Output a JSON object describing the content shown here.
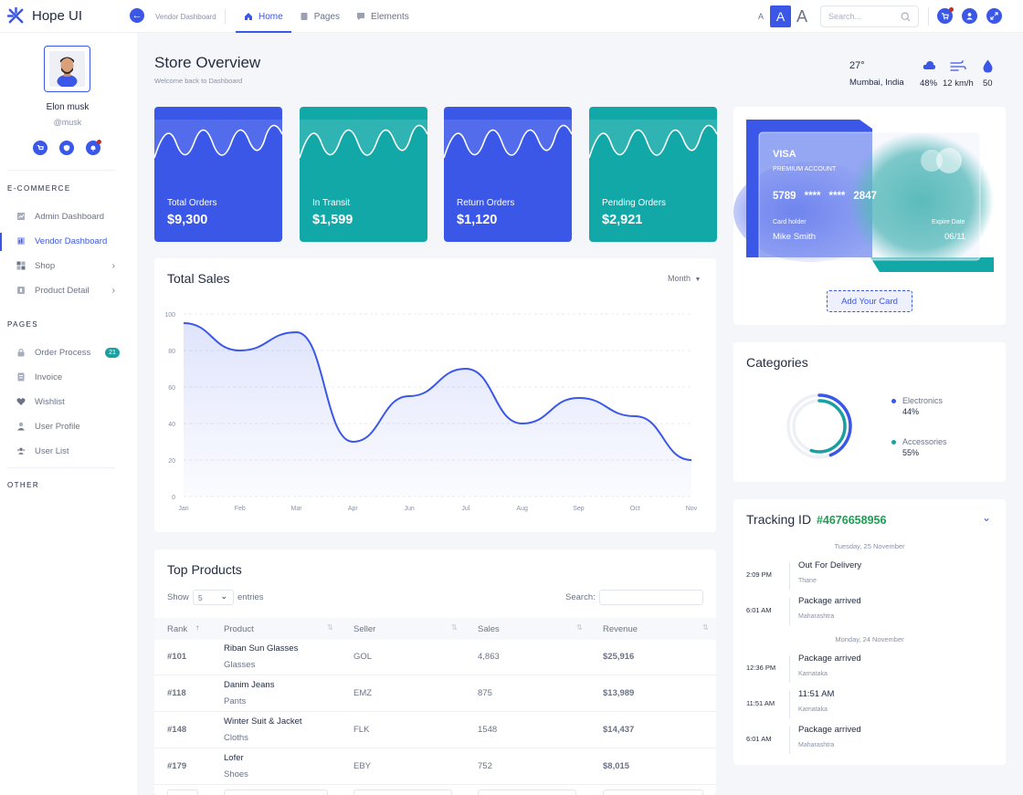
{
  "brand": {
    "name": "Hope UI"
  },
  "header": {
    "breadcrumb": "Vendor Dashboard",
    "nav": [
      {
        "label": "Home",
        "active": true,
        "icon": "home-icon"
      },
      {
        "label": "Pages",
        "active": false,
        "icon": "pages-icon"
      },
      {
        "label": "Elements",
        "active": false,
        "icon": "elements-icon"
      }
    ],
    "font_sizes": [
      "A",
      "A",
      "A"
    ],
    "search_placeholder": "Search..."
  },
  "sidebar": {
    "user_name": "Elon musk",
    "user_handle": "@musk",
    "sections": [
      {
        "title": "E-COMMERCE",
        "items": [
          {
            "label": "Admin Dashboard",
            "icon": "dashboard-icon"
          },
          {
            "label": "Vendor Dashboard",
            "icon": "vendor-icon",
            "active": true
          },
          {
            "label": "Shop",
            "icon": "grid-icon",
            "has_children": true
          },
          {
            "label": "Product Detail",
            "icon": "product-icon",
            "has_children": true
          }
        ]
      },
      {
        "title": "PAGES",
        "items": [
          {
            "label": "Order Process",
            "icon": "lock-icon",
            "badge": "21"
          },
          {
            "label": "Invoice",
            "icon": "invoice-icon"
          },
          {
            "label": "Wishlist",
            "icon": "heart-icon"
          },
          {
            "label": "User Profile",
            "icon": "user-icon"
          },
          {
            "label": "User List",
            "icon": "users-icon"
          }
        ]
      },
      {
        "title": "OTHER",
        "items": []
      }
    ]
  },
  "overview": {
    "title": "Store Overview",
    "subtitle": "Welcome back to Dashboard",
    "weather": {
      "temp": "27°",
      "city": "Mumbai, India",
      "humidity": "48%",
      "wind": "12 km/h",
      "rain": "50"
    }
  },
  "stats": [
    {
      "label": "Total Orders",
      "value": "$9,300",
      "color": "#3a57e8"
    },
    {
      "label": "In Transit",
      "value": "$1,599",
      "color": "#12a8a8"
    },
    {
      "label": "Return Orders",
      "value": "$1,120",
      "color": "#3a57e8"
    },
    {
      "label": "Pending Orders",
      "value": "$2,921",
      "color": "#12a8a8"
    }
  ],
  "sales": {
    "title": "Total Sales",
    "period": "Month",
    "chart_data": {
      "type": "line",
      "categories": [
        "Jan",
        "Feb",
        "Mar",
        "Apr",
        "Jun",
        "Jul",
        "Aug",
        "Sep",
        "Oct",
        "Nov"
      ],
      "values": [
        95,
        80,
        90,
        30,
        55,
        70,
        40,
        54,
        44,
        20
      ],
      "yticks": [
        "100",
        "80",
        "60",
        "40",
        "20",
        "0"
      ],
      "ylim": [
        0,
        100
      ],
      "color": "#3a57e8"
    }
  },
  "card": {
    "brand": "VISA",
    "account_type": "PREMIUM ACCOUNT",
    "number_first": "5789",
    "number_mask1": "****",
    "number_mask2": "****",
    "number_last": "2847",
    "holder_label": "Card holder",
    "holder": "Mike Smith",
    "expire_label": "Expire Date",
    "expire": "06/11",
    "add_button": "Add Your Card"
  },
  "categories": {
    "title": "Categories",
    "items": [
      {
        "name": "Electronics",
        "value": "44%",
        "color": "#3a57e8",
        "fraction": 0.44
      },
      {
        "name": "Accessories",
        "value": "55%",
        "color": "#1aa0a0",
        "fraction": 0.55
      }
    ]
  },
  "products": {
    "title": "Top Products",
    "show_label": "Show",
    "entries_value": "5",
    "entries_label": "entries",
    "search_label": "Search:",
    "columns": [
      "Rank",
      "Product",
      "Seller",
      "Sales",
      "Revenue"
    ],
    "rows": [
      {
        "rank": "#101",
        "name": "Riban Sun Glasses",
        "category": "Glasses",
        "seller": "GOL",
        "sales": "4,863",
        "revenue": "$25,916"
      },
      {
        "rank": "#118",
        "name": "Danim Jeans",
        "category": "Pants",
        "seller": "EMZ",
        "sales": "875",
        "revenue": "$13,989"
      },
      {
        "rank": "#148",
        "name": "Winter Suit & Jacket",
        "category": "Cloths",
        "seller": "FLK",
        "sales": "1548",
        "revenue": "$14,437"
      },
      {
        "rank": "#179",
        "name": "Lofer",
        "category": "Shoes",
        "seller": "EBY",
        "sales": "752",
        "revenue": "$8,015"
      }
    ]
  },
  "tracking": {
    "title": "Tracking ID",
    "id": "#4676658956",
    "id_color": "#1aa053",
    "groups": [
      {
        "date": "Tuesday, 25 November",
        "events": [
          {
            "time": "2:09 PM",
            "title": "Out For Delivery",
            "location": "Thane"
          },
          {
            "time": "6:01 AM",
            "title": "Package arrived",
            "location": "Maharashtra"
          }
        ]
      },
      {
        "date": "Monday, 24 November",
        "events": [
          {
            "time": "12:36 PM",
            "title": "Package arrived",
            "location": "Karnataka"
          },
          {
            "time": "11:51 AM",
            "title": "11:51 AM",
            "location": "Karnataka"
          },
          {
            "time": "6:01 AM",
            "title": "Package arrived",
            "location": "Maharashtra"
          }
        ]
      }
    ]
  }
}
